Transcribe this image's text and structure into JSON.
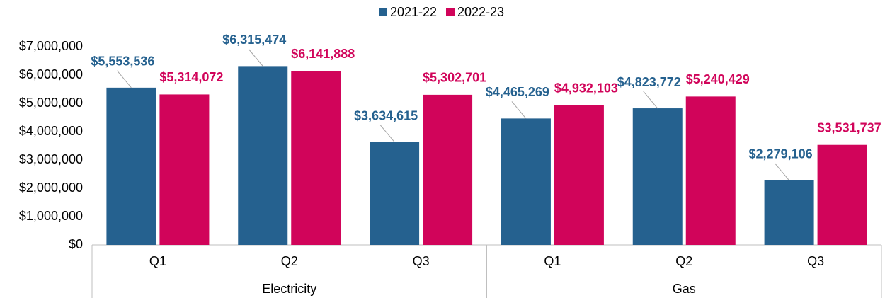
{
  "chart_data": {
    "type": "bar",
    "categories": [
      "Q1",
      "Q2",
      "Q3",
      "Q1",
      "Q2",
      "Q3"
    ],
    "groups": [
      "Electricity",
      "Gas"
    ],
    "series": [
      {
        "name": "2021-22",
        "color": "#25618f",
        "values": [
          5553536,
          6315474,
          3634615,
          4465269,
          4823772,
          2279106
        ],
        "value_labels": [
          "$5,553,536",
          "$6,315,474",
          "$3,634,615",
          "$4,465,269",
          "$4,823,772",
          "$2,279,106"
        ]
      },
      {
        "name": "2022-23",
        "color": "#d1045a",
        "values": [
          5314072,
          6141888,
          5302701,
          4932103,
          5240429,
          3531737
        ],
        "value_labels": [
          "$5,314,072",
          "$6,141,888",
          "$5,302,701",
          "$4,932,103",
          "$5,240,429",
          "$3,531,737"
        ]
      }
    ],
    "ylim": [
      0,
      7000000
    ],
    "yticks": [
      {
        "value": 0,
        "label": "$0"
      },
      {
        "value": 1000000,
        "label": "$1,000,000"
      },
      {
        "value": 2000000,
        "label": "$2,000,000"
      },
      {
        "value": 3000000,
        "label": "$3,000,000"
      },
      {
        "value": 4000000,
        "label": "$4,000,000"
      },
      {
        "value": 5000000,
        "label": "$5,000,000"
      },
      {
        "value": 6000000,
        "label": "$6,000,000"
      },
      {
        "value": 7000000,
        "label": "$7,000,000"
      }
    ],
    "grid": false,
    "legend": "top"
  }
}
